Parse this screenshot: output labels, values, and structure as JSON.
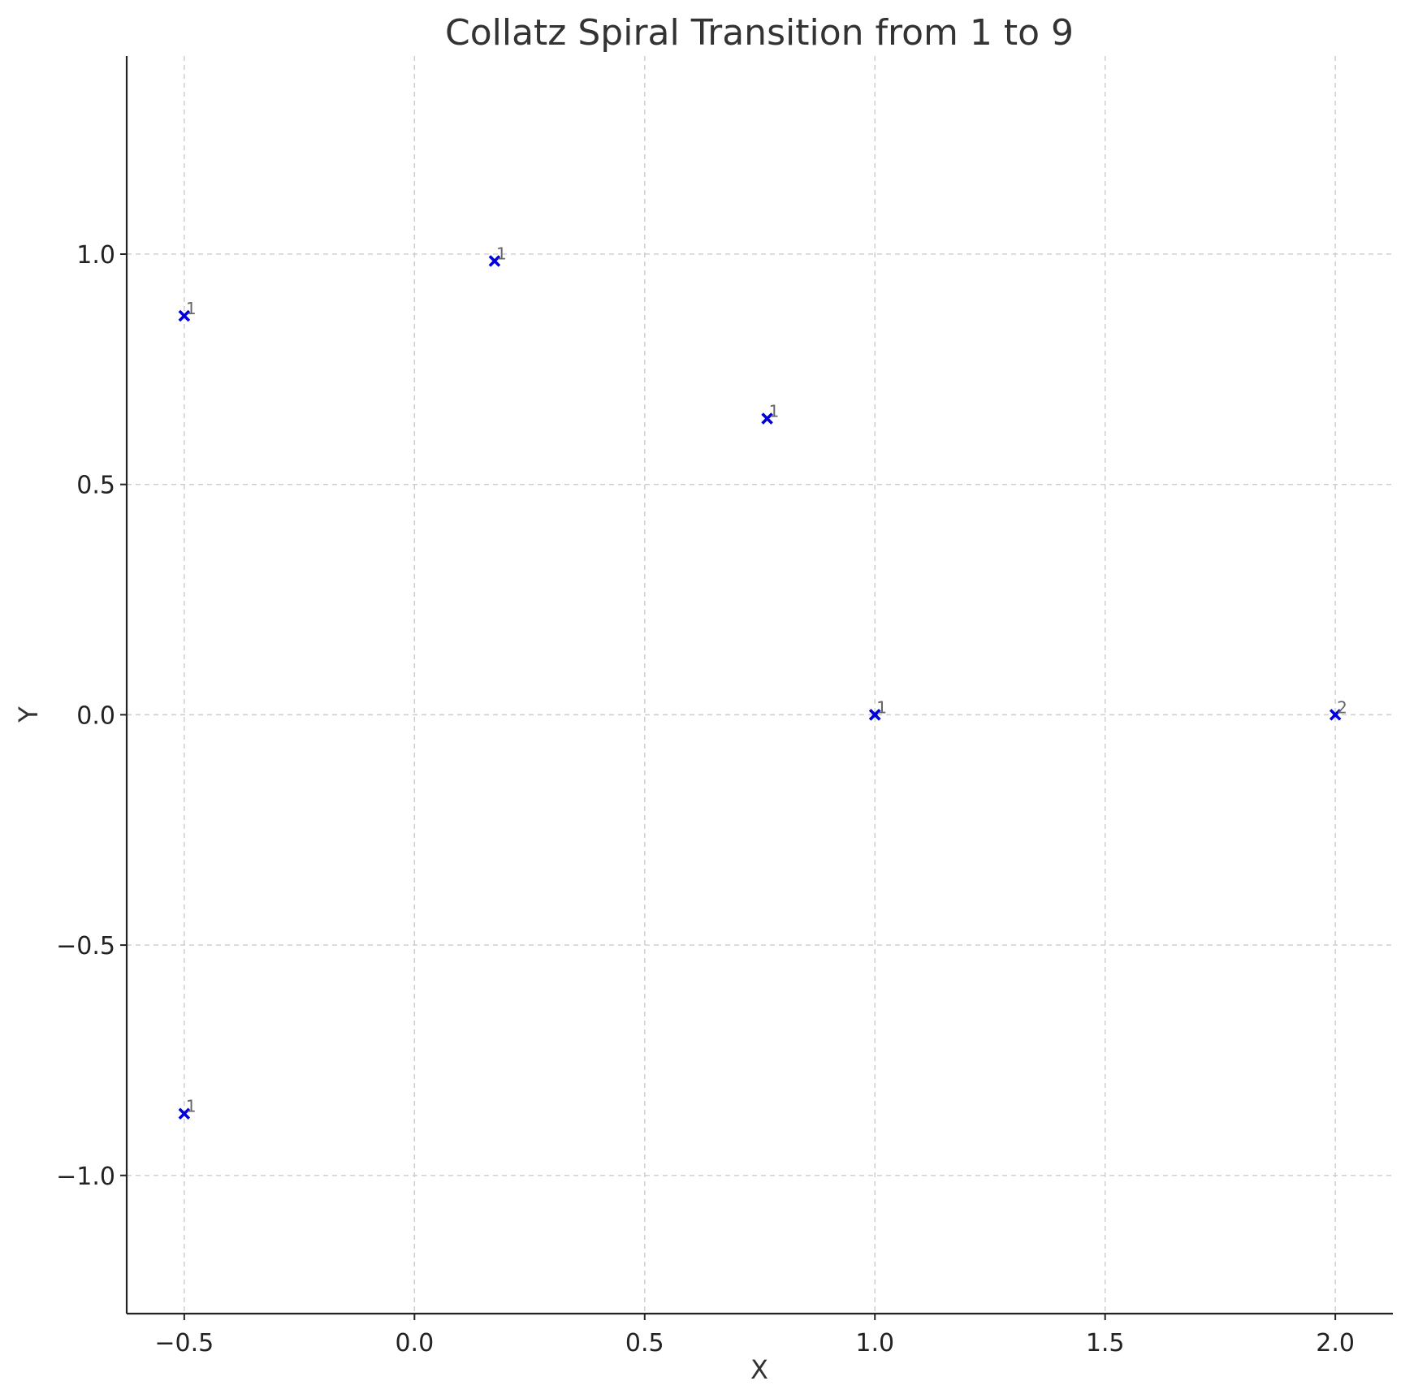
{
  "chart_data": {
    "type": "scatter",
    "title": "Collatz Spiral Transition from 1 to 9",
    "xlabel": "X",
    "ylabel": "Y",
    "xlim": [
      -0.625,
      2.125
    ],
    "ylim": [
      -1.3,
      1.43
    ],
    "xticks": [
      -0.5,
      0.0,
      0.5,
      1.0,
      1.5,
      2.0
    ],
    "xtick_labels": [
      "−0.5",
      "0.0",
      "0.5",
      "1.0",
      "1.5",
      "2.0"
    ],
    "yticks": [
      -1.0,
      -0.5,
      0.0,
      0.5,
      1.0
    ],
    "ytick_labels": [
      "−1.0",
      "−0.5",
      "0.0",
      "0.5",
      "1.0"
    ],
    "grid": true,
    "marker": "x",
    "marker_color": "#0000dd",
    "points": [
      {
        "x": 1.0,
        "y": 0.0,
        "label": "1"
      },
      {
        "x": 2.0,
        "y": 0.0,
        "label": "2"
      },
      {
        "x": 1.0,
        "y": 0.0,
        "label": "1"
      },
      {
        "x": 0.766,
        "y": 0.643,
        "label": "1"
      },
      {
        "x": 0.174,
        "y": 0.985,
        "label": "1"
      },
      {
        "x": -0.5,
        "y": 0.866,
        "label": "1"
      },
      {
        "x": -0.5,
        "y": -0.866,
        "label": "1"
      }
    ]
  }
}
